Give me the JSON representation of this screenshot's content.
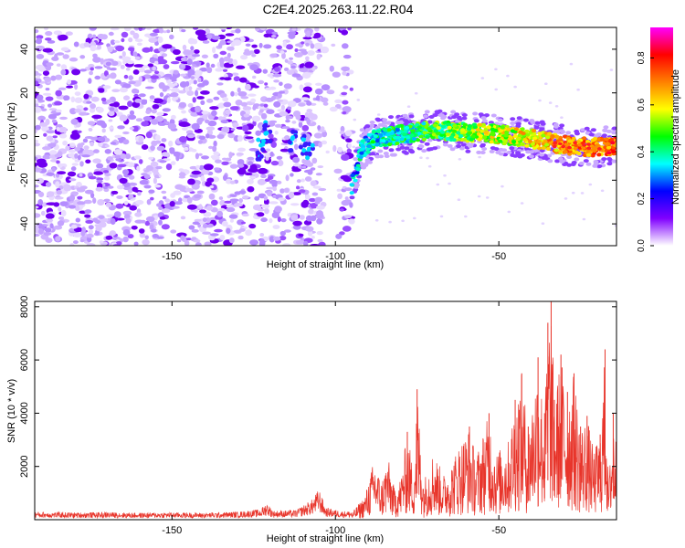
{
  "figure_title": "C2E4.2025.263.11.22.R04",
  "chart_data": [
    {
      "type": "heatmap",
      "title": "C2E4.2025.263.11.22.R04",
      "xlabel": "Height of straight line (km)",
      "ylabel": "Frequency (Hz)",
      "xlim": [
        -192,
        -14
      ],
      "ylim": [
        -50,
        50
      ],
      "x_ticks": [
        -150,
        -100,
        -50
      ],
      "y_ticks": [
        -40,
        -20,
        0,
        20,
        40
      ],
      "noise_region": [
        -192,
        -95
      ],
      "noise_gap": [
        -104,
        -98
      ],
      "signal_start": -95,
      "signal_track": [
        {
          "x": -95,
          "freq": -22
        },
        {
          "x": -92,
          "freq": -6
        },
        {
          "x": -88,
          "freq": -1
        },
        {
          "x": -80,
          "freq": 1
        },
        {
          "x": -70,
          "freq": 3
        },
        {
          "x": -60,
          "freq": 2
        },
        {
          "x": -50,
          "freq": 1
        },
        {
          "x": -40,
          "freq": -1
        },
        {
          "x": -30,
          "freq": -4
        },
        {
          "x": -20,
          "freq": -5
        },
        {
          "x": -14,
          "freq": -4
        }
      ],
      "colorbar": {
        "label": "Normalized spectral amplitude",
        "range": [
          0,
          0.93
        ],
        "ticks": [
          0.0,
          0.2,
          0.4,
          0.6,
          0.8
        ],
        "tick_labels": [
          "0.0",
          "0.2",
          "0.4",
          "0.6",
          "0.8"
        ],
        "stops": [
          "#ffffff",
          "#8000ff",
          "#0000ff",
          "#00ffff",
          "#00ff00",
          "#ffff00",
          "#ff8000",
          "#ff0000",
          "#ff00ff"
        ]
      }
    },
    {
      "type": "line",
      "title": "",
      "xlabel": "Height of straight line (km)",
      "ylabel": "SNR (10 * v/v)",
      "xlim": [
        -192,
        -14
      ],
      "ylim": [
        0,
        8200
      ],
      "x_ticks": [
        -150,
        -100,
        -50
      ],
      "y_ticks": [
        2000,
        4000,
        6000,
        8000
      ],
      "color": "#e8352b",
      "series": [
        {
          "name": "SNR",
          "points": [
            [
              -192,
              230
            ],
            [
              -180,
              210
            ],
            [
              -170,
              220
            ],
            [
              -160,
              200
            ],
            [
              -150,
              210
            ],
            [
              -140,
              200
            ],
            [
              -130,
              230
            ],
            [
              -123,
              300
            ],
            [
              -121,
              500
            ],
            [
              -119,
              260
            ],
            [
              -112,
              280
            ],
            [
              -107,
              600
            ],
            [
              -105,
              900
            ],
            [
              -103,
              350
            ],
            [
              -98,
              250
            ],
            [
              -95,
              250
            ],
            [
              -91,
              900
            ],
            [
              -89,
              1900
            ],
            [
              -88,
              2300
            ],
            [
              -86,
              1400
            ],
            [
              -84,
              2400
            ],
            [
              -82,
              1200
            ],
            [
              -80,
              1600
            ],
            [
              -78,
              3300
            ],
            [
              -76,
              1800
            ],
            [
              -75,
              4900
            ],
            [
              -73,
              1500
            ],
            [
              -70,
              2600
            ],
            [
              -67,
              1700
            ],
            [
              -65,
              2000
            ],
            [
              -62,
              2900
            ],
            [
              -59,
              3500
            ],
            [
              -57,
              2400
            ],
            [
              -53,
              4000
            ],
            [
              -51,
              2500
            ],
            [
              -47,
              3000
            ],
            [
              -45,
              4500
            ],
            [
              -43,
              5500
            ],
            [
              -41,
              3500
            ],
            [
              -38,
              6100
            ],
            [
              -36,
              4000
            ],
            [
              -35,
              7400
            ],
            [
              -34,
              8200
            ],
            [
              -33,
              4500
            ],
            [
              -31,
              6200
            ],
            [
              -29,
              4800
            ],
            [
              -27,
              5500
            ],
            [
              -25,
              3500
            ],
            [
              -23,
              3900
            ],
            [
              -21,
              2600
            ],
            [
              -19,
              3200
            ],
            [
              -17.5,
              6400
            ],
            [
              -16.5,
              1200
            ],
            [
              -15,
              4000
            ],
            [
              -14,
              3000
            ]
          ]
        }
      ]
    }
  ]
}
